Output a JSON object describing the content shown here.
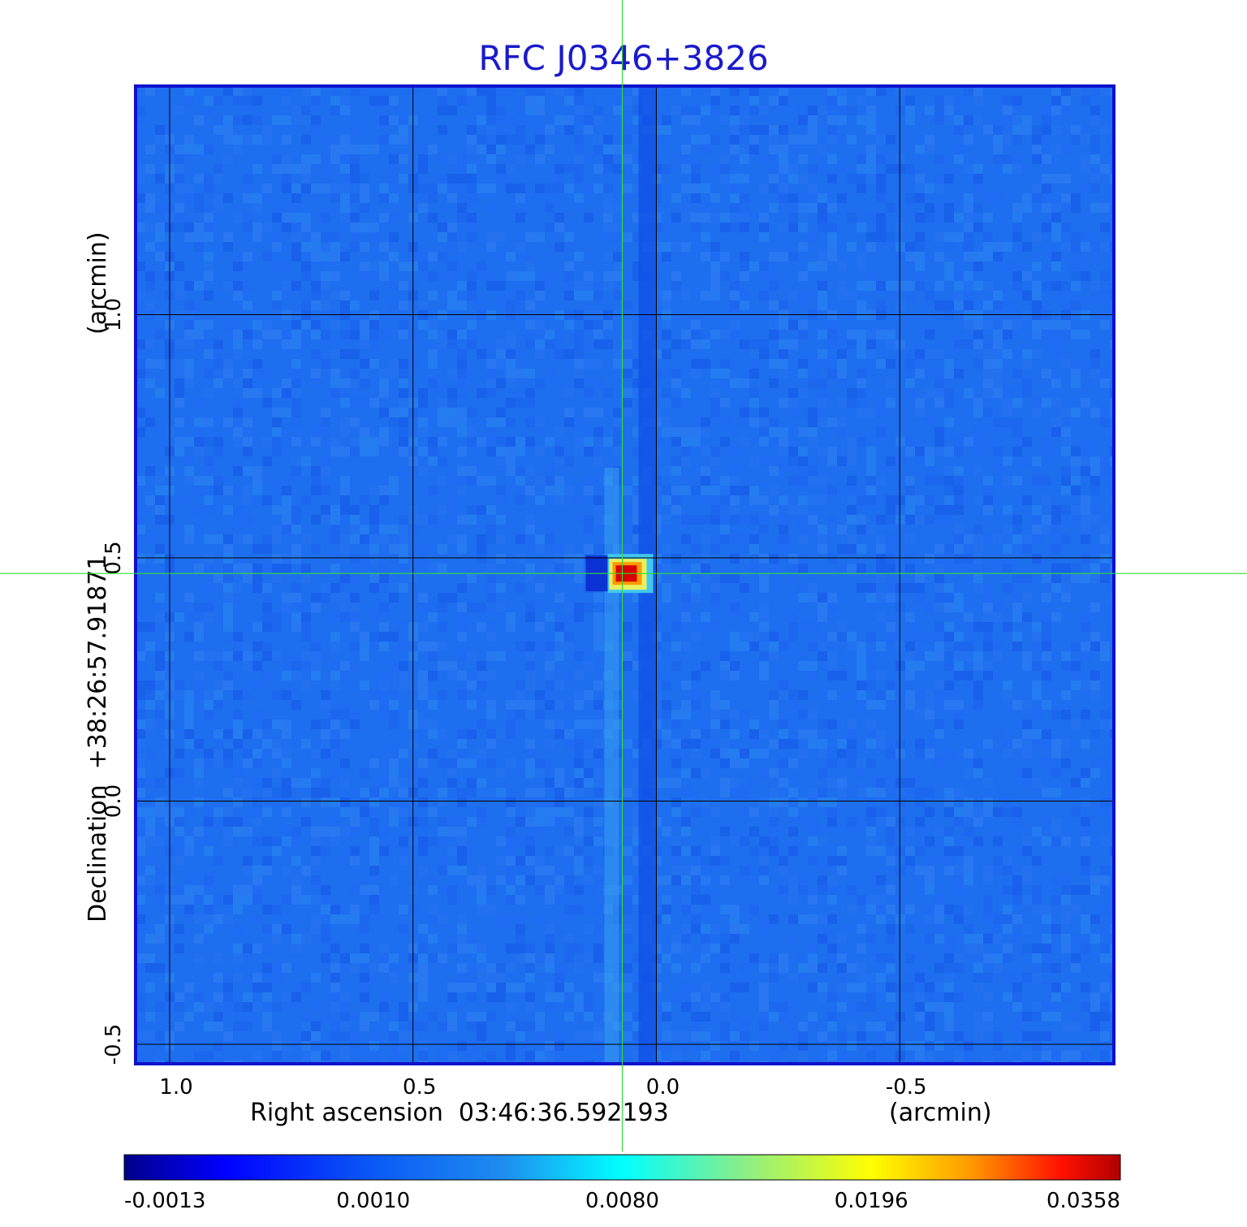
{
  "chart_data": {
    "type": "heatmap",
    "title": "RFC J0346+3826",
    "xlabel": "Right ascension  03:46:36.592193",
    "xunit": "(arcmin)",
    "ylabel": "Declination  +38:26:57.91871",
    "yunit": "(arcmin)",
    "xlim": [
      1.07,
      -0.94
    ],
    "ylim": [
      -0.54,
      1.47
    ],
    "x_ticks": [
      1.0,
      0.5,
      0.0,
      -0.5
    ],
    "x_tick_labels": [
      "1.0",
      "0.5",
      "0.0",
      "-0.5"
    ],
    "y_ticks": [
      -0.5,
      0.0,
      0.5,
      1.0
    ],
    "y_tick_labels": [
      "-0.5",
      "0.0",
      "0.5",
      "1.0"
    ],
    "grid": true,
    "crosshair": {
      "x": 0.07,
      "y": 0.468,
      "color": "#33dd33"
    },
    "source_peak": {
      "x": 0.07,
      "y": 0.468,
      "value": 0.0358
    },
    "colormap": "jet",
    "colorbar_tick_labels": [
      "-0.0013",
      "0.0010",
      "0.0080",
      "0.0196",
      "0.0358"
    ],
    "colorbar_ticks": [
      -0.0013,
      0.001,
      0.008,
      0.0196,
      0.0358
    ],
    "colors": {
      "title": "#1a1acc",
      "frame": "#1010cc",
      "grid": "#000000"
    }
  }
}
